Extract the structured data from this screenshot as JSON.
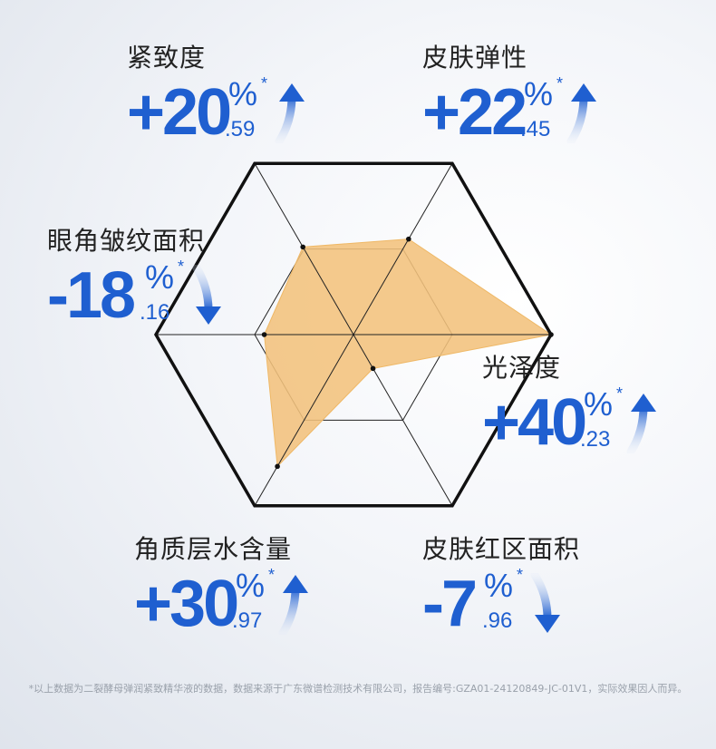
{
  "chart_data": {
    "type": "radar",
    "axes": [
      "紧致度",
      "皮肤弹性",
      "光泽度",
      "皮肤红区面积",
      "角质层水含量",
      "眼角皱纹面积"
    ],
    "values": [
      20.59,
      22.45,
      40.23,
      7.96,
      30.97,
      18.16
    ],
    "signs": [
      "+",
      "+",
      "+",
      "-",
      "+",
      "-"
    ],
    "directions": [
      "up",
      "up",
      "up",
      "down",
      "up",
      "down"
    ],
    "unit": "%",
    "range": [
      0,
      40.23
    ],
    "fill_color": "#f3c27c",
    "accent_color": "#1f5fd0"
  },
  "metrics": [
    {
      "name": "紧致度",
      "main": "+20",
      "dec": ".59",
      "pct": "%",
      "star": "*"
    },
    {
      "name": "皮肤弹性",
      "main": "+22",
      "dec": ".45",
      "pct": "%",
      "star": "*"
    },
    {
      "name": "眼角皱纹面积",
      "main": "-18",
      "dec": ".16",
      "pct": "%",
      "star": "*"
    },
    {
      "name": "光泽度",
      "main": "+40",
      "dec": ".23",
      "pct": "%",
      "star": "*"
    },
    {
      "name": "角质层水含量",
      "main": "+30",
      "dec": ".97",
      "pct": "%",
      "star": "*"
    },
    {
      "name": "皮肤红区面积",
      "main": "-7",
      "dec": ".96",
      "pct": "%",
      "star": "*"
    }
  ],
  "footnote": "*以上数据为二裂酵母弹润紧致精华液的数据，数据来源于广东微谱检测技术有限公司，报告编号:GZA01-24120849-JC-01V1，实际效果因人而异。"
}
